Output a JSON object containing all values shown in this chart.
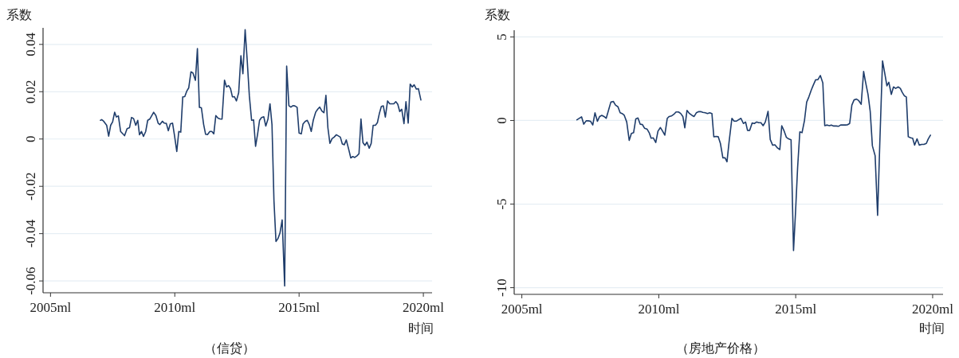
{
  "chart_data": [
    {
      "type": "line",
      "title": "（信贷）",
      "xlabel": "时间",
      "ylabel": "系数",
      "grid": "y",
      "xlim": [
        2004.7,
        2020.35
      ],
      "ylim": [
        -0.065,
        0.047
      ],
      "xticks": [
        {
          "value": 2005,
          "label": "2005ml"
        },
        {
          "value": 2010,
          "label": "2010ml"
        },
        {
          "value": 2015,
          "label": "2015ml"
        },
        {
          "value": 2020,
          "label": "2020ml"
        }
      ],
      "yticks": [
        -0.06,
        -0.04,
        -0.02,
        0,
        0.02,
        0.04
      ],
      "series": [
        {
          "color": "#1f3d6b",
          "x": [
            2007.01,
            2007.06,
            2007.14,
            2007.26,
            2007.34,
            2007.42,
            2007.5,
            2007.58,
            2007.65,
            2007.73,
            2007.82,
            2007.98,
            2008.08,
            2008.18,
            2008.26,
            2008.34,
            2008.43,
            2008.51,
            2008.58,
            2008.66,
            2008.74,
            2008.83,
            2008.91,
            2009.0,
            2009.15,
            2009.24,
            2009.33,
            2009.4,
            2009.5,
            2009.58,
            2009.66,
            2009.74,
            2009.82,
            2009.91,
            2009.99,
            2010.08,
            2010.16,
            2010.24,
            2010.32,
            2010.4,
            2010.48,
            2010.56,
            2010.65,
            2010.73,
            2010.83,
            2010.91,
            2010.99,
            2011.07,
            2011.16,
            2011.24,
            2011.32,
            2011.41,
            2011.49,
            2011.57,
            2011.65,
            2011.74,
            2011.82,
            2011.9,
            2012.0,
            2012.08,
            2012.16,
            2012.24,
            2012.32,
            2012.4,
            2012.48,
            2012.57,
            2012.66,
            2012.74,
            2012.83,
            2012.91,
            2013.0,
            2013.09,
            2013.17,
            2013.25,
            2013.33,
            2013.41,
            2013.49,
            2013.58,
            2013.66,
            2013.75,
            2013.83,
            2013.91,
            2013.99,
            2014.07,
            2014.15,
            2014.23,
            2014.32,
            2014.42,
            2014.5,
            2014.59,
            2014.67,
            2014.75,
            2014.83,
            2014.92,
            2015.0,
            2015.09,
            2015.16,
            2015.25,
            2015.33,
            2015.41,
            2015.49,
            2015.57,
            2015.67,
            2015.75,
            2015.83,
            2015.92,
            2016.0,
            2016.08,
            2016.16,
            2016.24,
            2016.33,
            2016.41,
            2016.5,
            2016.58,
            2016.66,
            2016.74,
            2016.82,
            2016.9,
            2017.0,
            2017.08,
            2017.16,
            2017.24,
            2017.33,
            2017.41,
            2017.49,
            2017.57,
            2017.65,
            2017.73,
            2017.82,
            2017.9,
            2017.98,
            2018.07,
            2018.15,
            2018.23,
            2018.31,
            2018.39,
            2018.47,
            2018.56,
            2018.65,
            2018.73,
            2018.81,
            2018.89,
            2018.97,
            2019.05,
            2019.13,
            2019.22,
            2019.3,
            2019.39,
            2019.47,
            2019.55,
            2019.63,
            2019.72,
            2019.8,
            2019.9
          ],
          "values": [
            0.0079,
            0.0082,
            0.0075,
            0.0058,
            0.0012,
            0.0058,
            0.0073,
            0.0113,
            0.0093,
            0.0098,
            0.0032,
            0.0014,
            0.0044,
            0.0048,
            0.0091,
            0.0087,
            0.0058,
            0.0079,
            0.0018,
            0.0032,
            0.0011,
            0.0032,
            0.0079,
            0.0085,
            0.0113,
            0.0099,
            0.0067,
            0.0061,
            0.0075,
            0.0067,
            0.0066,
            0.0035,
            0.0064,
            0.0067,
            0.0014,
            -0.0053,
            0.0032,
            0.0029,
            0.0178,
            0.0179,
            0.0202,
            0.0216,
            0.0284,
            0.0279,
            0.0248,
            0.0382,
            0.0134,
            0.0132,
            0.0062,
            0.002,
            0.0019,
            0.0032,
            0.0032,
            0.0022,
            0.0099,
            0.0088,
            0.0085,
            0.0084,
            0.0249,
            0.022,
            0.0226,
            0.0214,
            0.0178,
            0.0179,
            0.0161,
            0.0196,
            0.0352,
            0.0276,
            0.0462,
            0.0338,
            0.0182,
            0.0079,
            0.0081,
            -0.0031,
            0.002,
            0.0079,
            0.0091,
            0.0094,
            0.0055,
            0.0085,
            0.0149,
            0.0061,
            -0.0262,
            -0.0433,
            -0.0421,
            -0.0398,
            -0.0342,
            -0.0621,
            0.0308,
            0.0141,
            0.0135,
            0.0141,
            0.014,
            0.0134,
            0.0025,
            0.0022,
            0.0064,
            0.0075,
            0.0079,
            0.0061,
            0.0032,
            0.0079,
            0.0114,
            0.0126,
            0.0135,
            0.0118,
            0.0111,
            0.0185,
            0.0047,
            -0.0018,
            0.0002,
            0.0008,
            0.0018,
            0.0013,
            0.0008,
            -0.0021,
            -0.0024,
            -0.0004,
            -0.0045,
            -0.008,
            -0.0074,
            -0.0078,
            -0.0071,
            -0.0062,
            0.0085,
            -0.0015,
            -0.0027,
            -0.0013,
            -0.0039,
            -0.0019,
            0.0058,
            0.0058,
            0.0069,
            0.0108,
            0.0138,
            0.014,
            0.0093,
            0.0161,
            0.0149,
            0.0149,
            0.0149,
            0.0158,
            0.0147,
            0.0116,
            0.0126,
            0.0065,
            0.0158,
            0.0067,
            0.0232,
            0.022,
            0.0229,
            0.0211,
            0.0213,
            0.0165
          ]
        }
      ]
    },
    {
      "type": "line",
      "title": "（房地产价格）",
      "xlabel": "时间",
      "ylabel": "系数",
      "grid": "y",
      "xlim": [
        2004.72,
        2020.38
      ],
      "ylim": [
        -10.4,
        5.4
      ],
      "xticks": [
        {
          "value": 2005,
          "label": "2005ml"
        },
        {
          "value": 2010,
          "label": "2010ml"
        },
        {
          "value": 2015,
          "label": "2015ml"
        },
        {
          "value": 2020,
          "label": "2020ml"
        }
      ],
      "yticks": [
        -10,
        -5,
        0,
        5
      ],
      "series": [
        {
          "color": "#1f3d6b",
          "x": [
            2007.01,
            2007.18,
            2007.26,
            2007.35,
            2007.43,
            2007.51,
            2007.59,
            2007.67,
            2007.76,
            2007.84,
            2007.92,
            2008.0,
            2008.08,
            2008.25,
            2008.34,
            2008.42,
            2008.51,
            2008.59,
            2008.66,
            2008.74,
            2008.83,
            2008.92,
            2009.0,
            2009.08,
            2009.16,
            2009.24,
            2009.32,
            2009.4,
            2009.48,
            2009.57,
            2009.65,
            2009.72,
            2009.8,
            2009.89,
            2009.97,
            2010.06,
            2010.14,
            2010.22,
            2010.31,
            2010.38,
            2010.46,
            2010.55,
            2010.63,
            2010.72,
            2010.8,
            2010.88,
            2010.95,
            2011.03,
            2011.12,
            2011.21,
            2011.29,
            2011.37,
            2011.46,
            2011.53,
            2011.61,
            2011.7,
            2011.78,
            2011.86,
            2011.94,
            2012.01,
            2012.1,
            2012.17,
            2012.25,
            2012.34,
            2012.42,
            2012.49,
            2012.57,
            2012.67,
            2012.75,
            2012.83,
            2012.92,
            2013.0,
            2013.09,
            2013.17,
            2013.24,
            2013.32,
            2013.41,
            2013.49,
            2013.57,
            2013.65,
            2013.73,
            2013.81,
            2013.89,
            2013.99,
            2014.07,
            2014.16,
            2014.24,
            2014.34,
            2014.42,
            2014.49,
            2014.58,
            2014.66,
            2014.74,
            2014.83,
            2014.92,
            2014.99,
            2015.07,
            2015.15,
            2015.23,
            2015.32,
            2015.4,
            2015.48,
            2015.57,
            2015.64,
            2015.73,
            2015.81,
            2015.9,
            2015.99,
            2016.06,
            2016.15,
            2016.23,
            2016.3,
            2016.39,
            2016.48,
            2016.56,
            2016.64,
            2016.73,
            2016.81,
            2016.88,
            2016.97,
            2017.05,
            2017.13,
            2017.22,
            2017.3,
            2017.39,
            2017.48,
            2017.54,
            2017.64,
            2017.72,
            2017.8,
            2017.9,
            2017.99,
            2018.07,
            2018.17,
            2018.25,
            2018.33,
            2018.4,
            2018.49,
            2018.57,
            2018.65,
            2018.74,
            2018.82,
            2018.89,
            2018.97,
            2019.04,
            2019.11,
            2019.2,
            2019.27,
            2019.34,
            2019.43,
            2019.51,
            2019.6,
            2019.68,
            2019.77,
            2019.84,
            2019.92
          ],
          "values": [
            0.04,
            0.22,
            -0.22,
            -0.02,
            -0.02,
            -0.05,
            -0.27,
            0.46,
            -0.05,
            0.24,
            0.31,
            0.24,
            0.13,
            1.1,
            1.14,
            0.92,
            0.82,
            0.46,
            0.42,
            0.31,
            -0.09,
            -1.19,
            -0.77,
            -0.73,
            0.09,
            0.15,
            -0.22,
            -0.24,
            -0.46,
            -0.51,
            -0.73,
            -1.06,
            -1.04,
            -1.32,
            -0.64,
            -0.42,
            -0.64,
            -0.88,
            0.13,
            0.24,
            0.27,
            0.37,
            0.51,
            0.51,
            0.42,
            0.24,
            -0.44,
            0.6,
            0.42,
            0.31,
            0.24,
            0.46,
            0.53,
            0.53,
            0.49,
            0.46,
            0.42,
            0.46,
            0.42,
            -0.97,
            -0.95,
            -0.97,
            -1.37,
            -2.23,
            -2.23,
            -2.47,
            -1.23,
            0.13,
            -0.04,
            -0.04,
            0.05,
            0.13,
            -0.18,
            -0.09,
            -0.59,
            -0.59,
            -0.15,
            -0.18,
            -0.09,
            -0.13,
            -0.13,
            -0.31,
            -0.09,
            0.55,
            -1.14,
            -1.48,
            -1.45,
            -1.65,
            -1.74,
            -0.31,
            -0.64,
            -1.01,
            -1.1,
            -1.15,
            -7.78,
            -5.59,
            -2.8,
            -0.68,
            -0.73,
            0.0,
            1.1,
            1.41,
            1.83,
            2.11,
            2.44,
            2.44,
            2.69,
            2.25,
            -0.31,
            -0.27,
            -0.31,
            -0.27,
            -0.33,
            -0.33,
            -0.35,
            -0.27,
            -0.26,
            -0.27,
            -0.26,
            -0.18,
            0.92,
            1.23,
            1.28,
            1.19,
            0.97,
            2.93,
            2.38,
            1.56,
            0.55,
            -1.52,
            -2.11,
            -5.68,
            -1.37,
            3.57,
            2.84,
            2.07,
            2.29,
            1.56,
            2.01,
            1.92,
            2.01,
            1.92,
            1.68,
            1.47,
            1.41,
            -0.97,
            -1.04,
            -1.06,
            -1.47,
            -1.1,
            -1.47,
            -1.43,
            -1.43,
            -1.37,
            -1.1,
            -0.88
          ]
        }
      ]
    }
  ]
}
